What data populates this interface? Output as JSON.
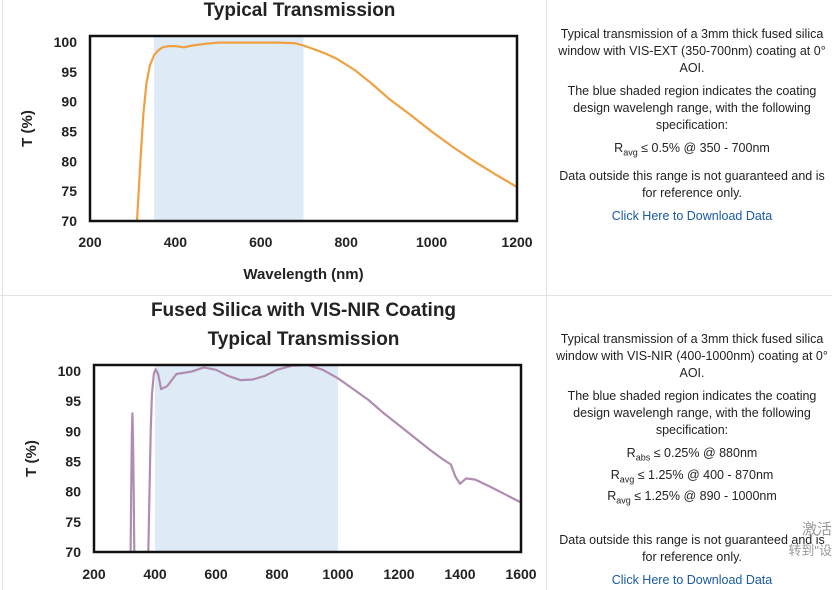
{
  "chart_data": [
    {
      "type": "line",
      "title_lines": [
        "Typical Transmission"
      ],
      "xlabel": "Wavelength (nm)",
      "ylabel": "T (%)",
      "xlim": [
        200,
        1200
      ],
      "ylim": [
        70,
        101
      ],
      "xticks": [
        200,
        400,
        600,
        800,
        1000,
        1200
      ],
      "yticks": [
        70,
        75,
        80,
        85,
        90,
        95,
        100
      ],
      "shaded_region": [
        350,
        700
      ],
      "shade_color": "#deeaf6",
      "line_color": "#f0a040",
      "series": [
        {
          "x": [
            310,
            318,
            325,
            332,
            340,
            350,
            360,
            370,
            385,
            400,
            420,
            440,
            470,
            500,
            530,
            560,
            600,
            640,
            680,
            700,
            720,
            750,
            780,
            820,
            860,
            900,
            950,
            1000,
            1050,
            1100,
            1150,
            1200
          ],
          "values": [
            70,
            80,
            88,
            93,
            96,
            97.8,
            98.6,
            99.1,
            99.3,
            99.3,
            99.1,
            99.4,
            99.7,
            99.9,
            99.9,
            99.9,
            99.9,
            99.9,
            99.8,
            99.4,
            98.9,
            98.1,
            97.1,
            95.3,
            93.0,
            90.5,
            87.8,
            85.0,
            82.4,
            80.0,
            77.8,
            75.7
          ]
        }
      ]
    },
    {
      "type": "line",
      "title_lines": [
        "Fused Silica with VIS-NIR Coating",
        "Typical Transmission"
      ],
      "xlabel": "",
      "ylabel": "T (%)",
      "xlim": [
        200,
        1600
      ],
      "ylim": [
        70,
        101
      ],
      "xticks": [
        200,
        400,
        600,
        800,
        1000,
        1200,
        1400,
        1600
      ],
      "yticks": [
        70,
        75,
        80,
        85,
        90,
        95,
        100
      ],
      "shaded_region": [
        400,
        1000
      ],
      "shade_color": "#deeaf6",
      "line_color": "#b08cb0",
      "series": [
        {
          "segments": [
            {
              "x": [
                320,
                322,
                324,
                326,
                328,
                330,
                332
              ],
              "values": [
                70,
                80,
                89,
                93,
                89,
                80,
                70
              ]
            },
            {
              "x": [
                378,
                382,
                386,
                390,
                396,
                402,
                410,
                420,
                440,
                470,
                520,
                560,
                600,
                640,
                680,
                720,
                760,
                800,
                850,
                900,
                950,
                1000,
                1050,
                1100,
                1150,
                1200,
                1250,
                1300,
                1340,
                1370,
                1385,
                1400,
                1420,
                1450,
                1500,
                1550,
                1600
              ],
              "values": [
                70,
                80,
                90,
                96,
                99.5,
                100.3,
                99.5,
                97,
                97.5,
                99.5,
                99.9,
                100.6,
                100.2,
                99.2,
                98.5,
                98.6,
                99.2,
                100.2,
                100.9,
                101,
                100.2,
                98.8,
                97,
                95.2,
                93,
                91,
                89,
                87,
                85.5,
                84.5,
                82.5,
                81.3,
                82.2,
                82,
                80.8,
                79.5,
                78.2
              ]
            }
          ]
        }
      ]
    }
  ],
  "descriptions": [
    {
      "para1": "Typical transmission of a 3mm thick fused silica window with VIS-EXT (350-700nm) coating at 0° AOI.",
      "para2": "The blue shaded region indicates the coating design wavelengh range, with the following specification:",
      "specs": [
        {
          "sym": "R",
          "sub": "avg",
          "rest": " ≤ 0.5% @ 350 - 700nm"
        }
      ],
      "para3": "Data outside this range is not guaranteed and is for reference only.",
      "link": "Click Here to Download Data"
    },
    {
      "para1": "Typical transmission of a 3mm thick fused silica window with VIS-NIR (400-1000nm) coating at 0° AOI.",
      "para2": "The blue shaded region indicates the coating design wavelengh range, with the following specification:",
      "specs": [
        {
          "sym": "R",
          "sub": "abs",
          "rest": " ≤ 0.25% @ 880nm"
        },
        {
          "sym": "R",
          "sub": "avg",
          "rest": " ≤ 1.25% @ 400 - 870nm"
        },
        {
          "sym": "R",
          "sub": "avg",
          "rest": " ≤ 1.25% @ 890 - 1000nm"
        }
      ],
      "para3": "Data outside this range is not guaranteed and is for reference only.",
      "link": "Click Here to Download Data"
    }
  ],
  "watermark": [
    "激活",
    "转到\"设"
  ]
}
